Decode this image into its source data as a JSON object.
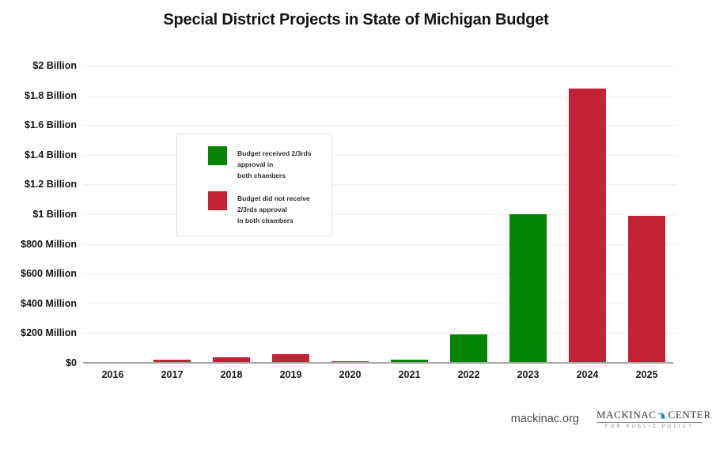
{
  "title": "Special District Projects in State of Michigan Budget",
  "chart_data": {
    "type": "bar",
    "title": "Special District Projects in State of Michigan Budget",
    "xlabel": "",
    "ylabel": "",
    "categories": [
      "2016",
      "2017",
      "2018",
      "2019",
      "2020",
      "2021",
      "2022",
      "2023",
      "2024",
      "2025"
    ],
    "values_millions": [
      8,
      21,
      37,
      57,
      11,
      20,
      193,
      1000,
      1845,
      990
    ],
    "bar_colors_key": [
      "not_approved",
      "not_approved",
      "not_approved",
      "not_approved",
      "not_approved",
      "approved",
      "approved",
      "approved",
      "not_approved",
      "not_approved"
    ],
    "ylim_millions": [
      0,
      2000
    ],
    "yticks": [
      {
        "label": "$2 Billion",
        "value_millions": 2000
      },
      {
        "label": "$1.8 Billion",
        "value_millions": 1800
      },
      {
        "label": "$1.6 Billion",
        "value_millions": 1600
      },
      {
        "label": "$1.4 Billion",
        "value_millions": 1400
      },
      {
        "label": "$1.2 Billion",
        "value_millions": 1200
      },
      {
        "label": "$1 Billion",
        "value_millions": 1000
      },
      {
        "label": "$800 Million",
        "value_millions": 800
      },
      {
        "label": "$600 Million",
        "value_millions": 600
      },
      {
        "label": "$400 Million",
        "value_millions": 400
      },
      {
        "label": "$200 Million",
        "value_millions": 200
      },
      {
        "label": "$0",
        "value_millions": 0
      }
    ],
    "grid": true,
    "legend_position": "inside-upper-left",
    "colors": {
      "approved": "#068406",
      "not_approved": "#c32334"
    }
  },
  "legend": {
    "items": [
      {
        "key": "approved",
        "color": "#068406",
        "label": "Budget received 2/3rds approval in both chambers",
        "lines": [
          "Budget received 2/3rds approval in",
          "both chambers"
        ]
      },
      {
        "key": "not_approved",
        "color": "#c32334",
        "label": "Budget did not receive 2/3rds approval in both chambers",
        "lines": [
          "Budget did not receive 2/3rds approval",
          "in both chambers"
        ]
      }
    ]
  },
  "footer": {
    "website": "mackinac.org",
    "logo": {
      "name_left": "MACKINAC",
      "name_right": "CENTER",
      "tagline": "FOR PUBLIC POLICY",
      "michigan_icon_color": "#1f8ca0"
    }
  }
}
